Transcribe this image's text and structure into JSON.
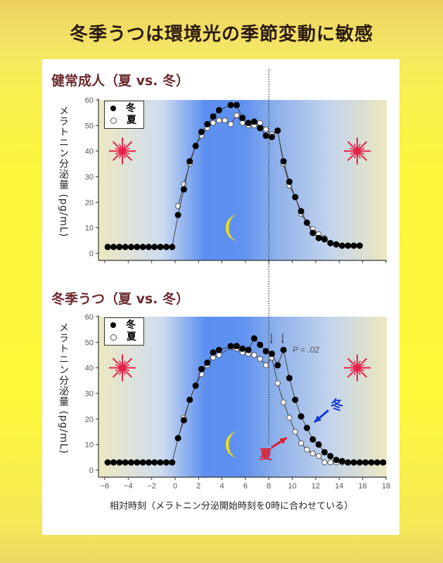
{
  "title": "冬季うつは環境光の季節変動に敏感",
  "colors": {
    "winter_dot": "#000000",
    "summer_dot": "#ffffff",
    "night": "#5c8ff0",
    "day": "#ede8c0",
    "sun": "#e8204a",
    "moon": "#f7e400",
    "summer_arrow": "#e01c2a",
    "winter_arrow": "#1536d0",
    "subtitle": "#6b2a2e"
  },
  "x_axis_label": "相対時刻（メラトニン分泌開始時刻を0時に合わせている）",
  "y_axis_label": "メラトニン分泌量 (pg/mL)",
  "icons": {
    "day": "sun-icon",
    "night": "crescent-moon-icon"
  },
  "chart_data": [
    {
      "type": "line",
      "title": "健常成人（夏 vs. 冬）",
      "ylabel": "メラトニン分泌量 (pg/mL)",
      "ylim": [
        0,
        60
      ],
      "xlim": [
        -6.5,
        18
      ],
      "yticks": [
        0,
        10,
        20,
        30,
        40,
        50,
        60
      ],
      "reference_line_x": 8,
      "legend": {
        "position": "top-left",
        "entries": [
          "冬",
          "夏"
        ]
      },
      "series": [
        {
          "name": "冬",
          "marker": "filled",
          "x": [
            -5.75,
            -5.25,
            -4.75,
            -4.25,
            -3.75,
            -3.25,
            -2.75,
            -2.25,
            -1.75,
            -1.25,
            -0.75,
            -0.25,
            0.25,
            0.75,
            1.25,
            1.75,
            2.25,
            2.75,
            3.25,
            3.75,
            4.75,
            5.25,
            5.75,
            6.25,
            6.75,
            7.25,
            7.75,
            8.25,
            8.75,
            9.25,
            9.75,
            10.25,
            10.75,
            11.25,
            11.75,
            12.25,
            12.75,
            13.25,
            13.75,
            14.25,
            14.75,
            15.25,
            15.75
          ],
          "y": [
            2.5,
            2.5,
            2.5,
            2.5,
            2.5,
            2.5,
            2.5,
            2.5,
            2.5,
            2.5,
            2.5,
            2.5,
            15,
            25,
            36,
            42,
            47.5,
            50.5,
            53.5,
            56,
            58,
            58,
            53,
            51,
            51.5,
            49,
            46,
            45.5,
            48,
            36,
            28,
            22,
            16.5,
            12,
            8,
            6,
            5.5,
            4,
            3.5,
            3,
            3,
            3,
            3
          ]
        },
        {
          "name": "夏",
          "marker": "open",
          "x": [
            0.25,
            0.75,
            1.25,
            1.75,
            2.25,
            2.75,
            3.25,
            3.75,
            4.25,
            4.75,
            5.25,
            5.75,
            6.25,
            6.75,
            7.25,
            7.75,
            8.25,
            8.75,
            9.25,
            9.75,
            10.25,
            10.75,
            11.25,
            11.75,
            12.25,
            12.75
          ],
          "y": [
            18.5,
            27,
            35,
            42,
            46,
            49,
            51,
            52,
            52,
            50.5,
            54,
            51,
            50,
            50,
            51,
            48.5,
            46.5,
            48,
            35,
            26.5,
            22,
            15.5,
            12,
            9.5,
            7.5,
            6
          ]
        }
      ]
    },
    {
      "type": "line",
      "title": "冬季うつ（夏 vs. 冬）",
      "ylabel": "メラトニン分泌量 (pg/mL)",
      "xlabel": "相対時刻（メラトニン分泌開始時刻を0時に合わせている）",
      "ylim": [
        0,
        60
      ],
      "xlim": [
        -6.5,
        18
      ],
      "xticks": [
        -6,
        -4,
        -2,
        0,
        2,
        4,
        6,
        8,
        10,
        12,
        14,
        16,
        18
      ],
      "yticks": [
        0,
        10,
        20,
        30,
        40,
        50,
        60
      ],
      "reference_line_x": 8,
      "annotation": "P = .02",
      "legend": {
        "position": "top-left",
        "entries": [
          "冬",
          "夏"
        ]
      },
      "series": [
        {
          "name": "冬",
          "marker": "filled",
          "x": [
            -5.75,
            -5.25,
            -4.75,
            -4.25,
            -3.75,
            -3.25,
            -2.75,
            -2.25,
            -1.75,
            -1.25,
            -0.75,
            -0.25,
            0.25,
            0.75,
            1.25,
            1.75,
            2.25,
            2.75,
            3.25,
            3.75,
            4.75,
            5.25,
            5.75,
            6.25,
            6.75,
            7.25,
            7.75,
            8.25,
            8.75,
            9.25,
            9.75,
            10.25,
            10.75,
            11.25,
            11.75,
            12.25,
            12.75,
            13.25,
            13.75,
            14.25,
            14.75,
            15.25,
            15.75,
            16.25,
            16.75,
            17.25,
            17.75
          ],
          "y": [
            3,
            3,
            3,
            3,
            3,
            3,
            3,
            3,
            3,
            3,
            3,
            3,
            12.5,
            19.5,
            27.5,
            33,
            39.5,
            42,
            46,
            47,
            48.5,
            48.5,
            47.5,
            47,
            51.5,
            49,
            46.5,
            45.5,
            41,
            47,
            36,
            27.5,
            21,
            16.5,
            12,
            10,
            7,
            5.5,
            4,
            3.5,
            3,
            3,
            3,
            3,
            3,
            3,
            3
          ]
        },
        {
          "name": "夏",
          "marker": "open",
          "x": [
            0.25,
            0.75,
            1.25,
            1.75,
            2.25,
            2.75,
            3.25,
            3.75,
            4.75,
            5.25,
            5.75,
            6.25,
            6.75,
            7.25,
            7.75,
            8.25,
            8.75,
            9.25,
            9.75,
            10.25,
            10.75,
            11.25,
            11.75,
            12.25,
            12.75,
            13.25,
            13.75,
            14.25,
            17.75
          ],
          "y": [
            12.5,
            20.5,
            27.5,
            33,
            37.5,
            41,
            44,
            45,
            48,
            47.5,
            46,
            45.5,
            45,
            43.5,
            41,
            44,
            34,
            26.5,
            20.5,
            15,
            10.5,
            8,
            6.5,
            5.5,
            3,
            3,
            3,
            3,
            3
          ]
        }
      ],
      "series_labels": {
        "winter": "冬",
        "summer": "夏"
      }
    }
  ]
}
